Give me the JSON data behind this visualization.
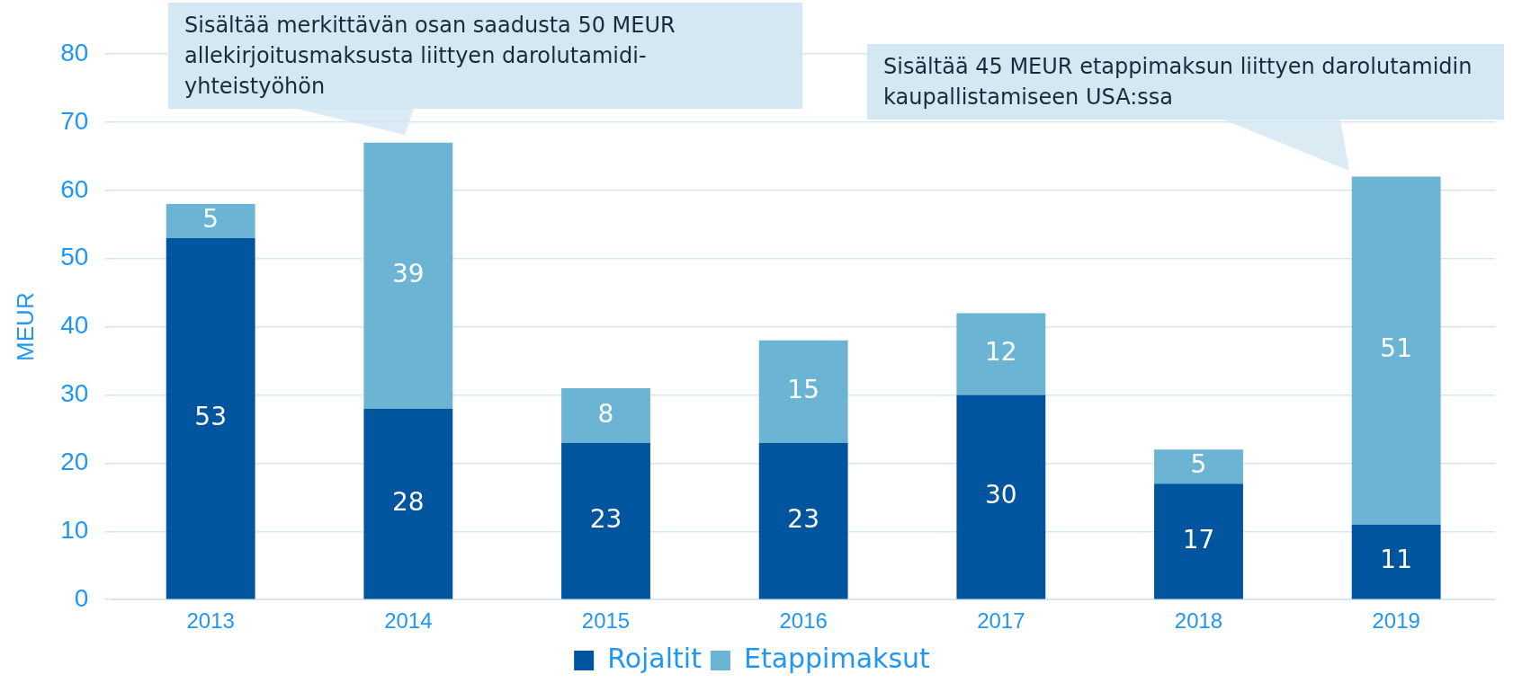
{
  "chart_data": {
    "type": "bar",
    "stacked": true,
    "ylabel": "MEUR",
    "categories": [
      "2013",
      "2014",
      "2015",
      "2016",
      "2017",
      "2018",
      "2019"
    ],
    "series": [
      {
        "name": "Rojaltit",
        "color": "#00559e",
        "values": [
          53,
          28,
          23,
          23,
          30,
          17,
          11
        ]
      },
      {
        "name": "Etappimaksut",
        "color": "#6bb4d4",
        "values": [
          5,
          39,
          8,
          15,
          12,
          5,
          51
        ]
      }
    ],
    "ylim": [
      0,
      80
    ],
    "yticks": [
      0,
      10,
      20,
      30,
      40,
      50,
      60,
      70,
      80
    ],
    "grid": "y",
    "legend": "bottom",
    "data_labels": true,
    "annotations": [
      "Sisältää merkittävän osan saadusta 50 MEUR allekirjoitusmaksusta liittyen darolutamidi-yhteistyöhön",
      "Sisältää 45 MEUR etappimaksun liittyen darolutamidin kaupallistamiseen USA:ssa"
    ]
  }
}
